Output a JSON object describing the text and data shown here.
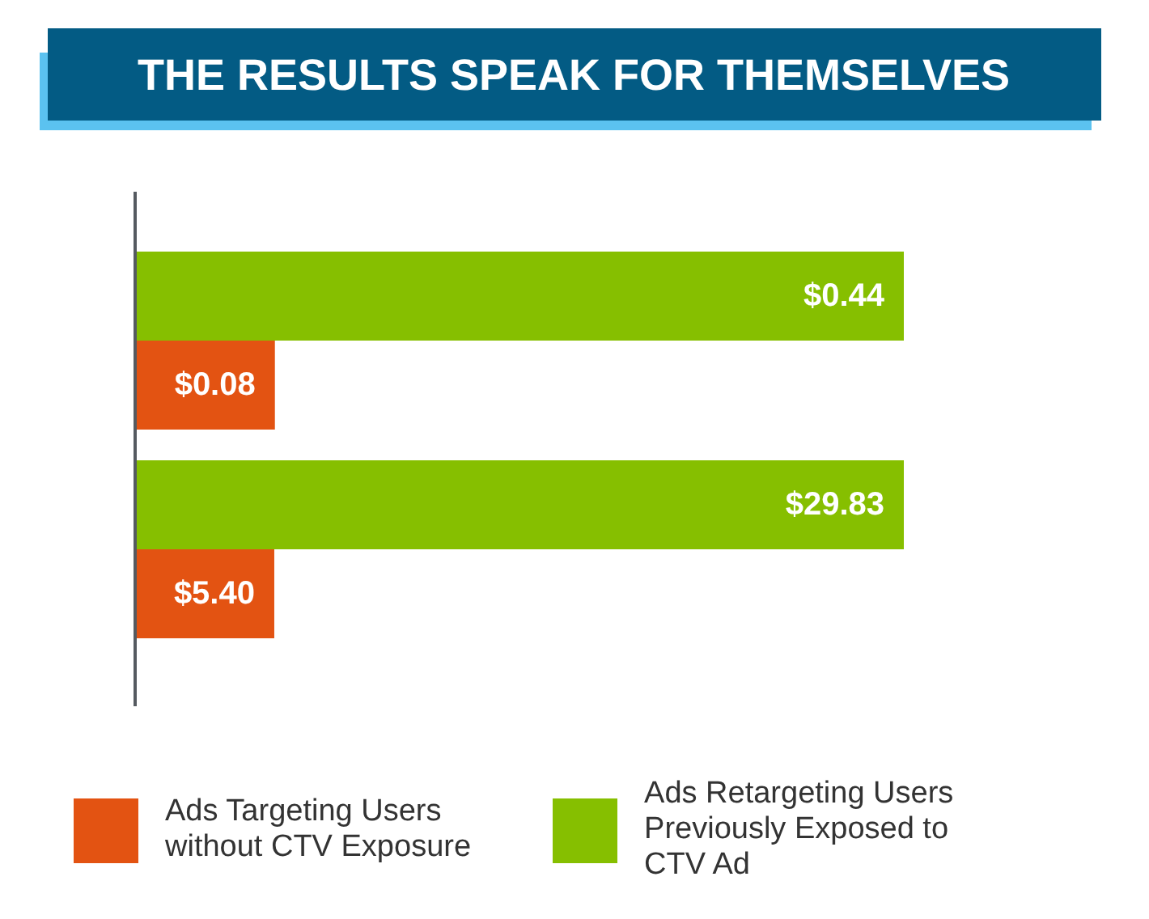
{
  "chart_data": [
    {
      "type": "bar",
      "orientation": "horizontal",
      "title": "THE RESULTS SPEAK FOR THEMSELVES",
      "categories": [
        null
      ],
      "series": [
        {
          "color": "#86bf00",
          "values": [
            0.44
          ],
          "value_labels": [
            "$0.44"
          ]
        },
        {
          "color": "#e35312",
          "values": [
            0.08
          ],
          "value_labels": [
            "$0.08"
          ]
        }
      ]
    },
    {
      "type": "bar",
      "orientation": "horizontal",
      "categories": [
        null
      ],
      "legend": "bottom",
      "series": [
        {
          "name": "Ads Retargeting Users Previously Exposed to CTV Ad",
          "color": "#86bf00",
          "values": [
            29.83
          ],
          "value_labels": [
            "$29.83"
          ]
        },
        {
          "name": "Ads Targeting Users without CTV Exposure",
          "color": "#e35312",
          "values": [
            5.4
          ],
          "value_labels": [
            "$5.40"
          ]
        }
      ]
    }
  ]
}
